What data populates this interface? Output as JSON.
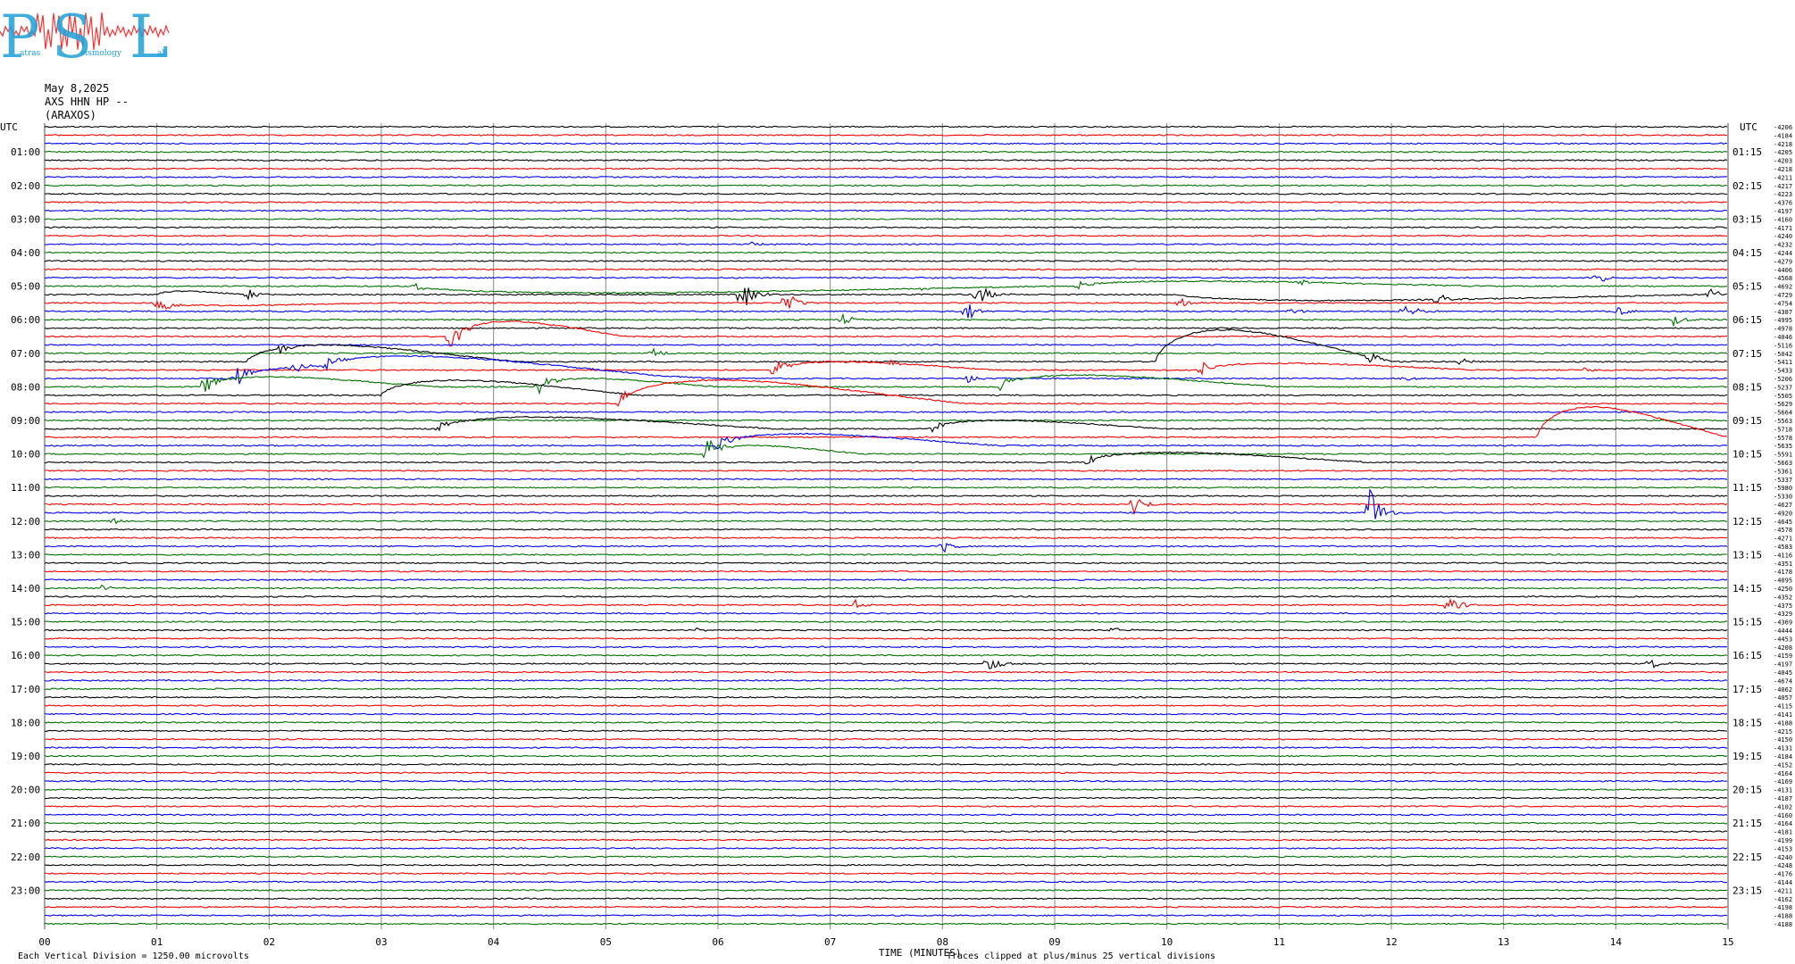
{
  "header": {
    "logo_text": "PSL",
    "logo_subtext": [
      "atras",
      "eismology",
      "ab"
    ],
    "date": "May 8,2025",
    "station": "AXS HHN HP --",
    "site": "(ARAXOS)"
  },
  "colors": {
    "trace_cycle": [
      "#000000",
      "#ff0000",
      "#0000ff",
      "#007000"
    ],
    "grid": "#888888",
    "logo": "#1fa0d8",
    "logo_trace": "#ff3030"
  },
  "chart_data": {
    "type": "seismogram",
    "title": "",
    "xlabel": "TIME (MINUTES)",
    "x_ticks": [
      "00",
      "01",
      "02",
      "03",
      "04",
      "05",
      "06",
      "07",
      "08",
      "09",
      "10",
      "11",
      "12",
      "13",
      "14",
      "15"
    ],
    "xlim": [
      0,
      15
    ],
    "left_axis_label": "UTC",
    "right_axis_label": "UTC",
    "left_hour_labels": [
      "01:00",
      "02:00",
      "03:00",
      "04:00",
      "05:00",
      "06:00",
      "07:00",
      "08:00",
      "09:00",
      "10:00",
      "11:00",
      "12:00",
      "13:00",
      "14:00",
      "15:00",
      "16:00",
      "17:00",
      "18:00",
      "19:00",
      "20:00",
      "21:00",
      "22:00",
      "23:00"
    ],
    "right_hour_labels": [
      "01:15",
      "02:15",
      "03:15",
      "04:15",
      "05:15",
      "06:15",
      "07:15",
      "08:15",
      "09:15",
      "10:15",
      "11:15",
      "12:15",
      "13:15",
      "14:15",
      "15:15",
      "16:15",
      "17:15",
      "18:15",
      "19:15",
      "20:15",
      "21:15",
      "22:15",
      "23:15"
    ],
    "trace_count": 96,
    "row_minutes": 15,
    "right_offsets": [
      -4206,
      -4184,
      -4218,
      -4205,
      -4203,
      -4218,
      -4211,
      -4217,
      -4223,
      -4376,
      -4197,
      -4160,
      -4171,
      -4240,
      -4232,
      -4244,
      -4279,
      -4406,
      -4568,
      -4692,
      -4729,
      -4754,
      -4387,
      -4995,
      -4978,
      -4046,
      -5116,
      -5042,
      -5411,
      -5433,
      -5206,
      -5237,
      -5505,
      -5629,
      -5664,
      -5563,
      -5718,
      -5578,
      -5635,
      -5591,
      -5663,
      -5361,
      -5337,
      -5980,
      -5330,
      -4627,
      -4920,
      -4645,
      -4578,
      -4271,
      -4583,
      -4116,
      -4351,
      -4178,
      -4095,
      -4250,
      -4352,
      -4375,
      -4329,
      -4369,
      -4444,
      -4453,
      -4208,
      -4159,
      -4197,
      -4045,
      -4674,
      -4062,
      -4057,
      -4115,
      -4141,
      -4188,
      -4215,
      -4150,
      -4131,
      -4184,
      -4152,
      -4164,
      -4169,
      -4131,
      -4187,
      -4102,
      -4160,
      -4164,
      -4181,
      -4199,
      -4153,
      -4240,
      -4248,
      -4176,
      -4144,
      -4211,
      -4162,
      -4198,
      -4188,
      -4188
    ],
    "events": [
      {
        "row": 21,
        "minute": 1.0,
        "amp": 22
      },
      {
        "row": 20,
        "minute": 1.8,
        "amp": 7
      },
      {
        "row": 19,
        "minute": 3.3,
        "amp": 4
      },
      {
        "row": 18,
        "minute": 5.4,
        "amp": 2
      },
      {
        "row": 14,
        "minute": 6.3,
        "amp": 3
      },
      {
        "row": 20,
        "minute": 6.2,
        "amp": 26
      },
      {
        "row": 21,
        "minute": 6.6,
        "amp": 16
      },
      {
        "row": 19,
        "minute": 7.8,
        "amp": 3
      },
      {
        "row": 20,
        "minute": 8.3,
        "amp": 18
      },
      {
        "row": 22,
        "minute": 8.2,
        "amp": 15
      },
      {
        "row": 19,
        "minute": 9.2,
        "amp": 6
      },
      {
        "row": 21,
        "minute": 10.1,
        "amp": 7
      },
      {
        "row": 19,
        "minute": 11.2,
        "amp": 4
      },
      {
        "row": 20,
        "minute": 12.4,
        "amp": 10
      },
      {
        "row": 18,
        "minute": 13.8,
        "amp": 10
      },
      {
        "row": 20,
        "minute": 14.8,
        "amp": 12
      },
      {
        "row": 22,
        "minute": 11.1,
        "amp": 4
      },
      {
        "row": 22,
        "minute": 12.1,
        "amp": 14
      },
      {
        "row": 22,
        "minute": 14.0,
        "amp": 7
      },
      {
        "row": 23,
        "minute": 14.5,
        "amp": 9
      },
      {
        "row": 23,
        "minute": 7.1,
        "amp": 7
      },
      {
        "row": 25,
        "minute": 3.6,
        "amp": 22
      },
      {
        "row": 27,
        "minute": 5.4,
        "amp": 8
      },
      {
        "row": 29,
        "minute": 6.5,
        "amp": 12
      },
      {
        "row": 29,
        "minute": 7.5,
        "amp": 6
      },
      {
        "row": 28,
        "minute": 2.1,
        "amp": 8
      },
      {
        "row": 30,
        "minute": 1.7,
        "amp": 18
      },
      {
        "row": 31,
        "minute": 1.4,
        "amp": 16
      },
      {
        "row": 30,
        "minute": 2.2,
        "amp": 9
      },
      {
        "row": 30,
        "minute": 2.5,
        "amp": 9
      },
      {
        "row": 31,
        "minute": 4.4,
        "amp": 12
      },
      {
        "row": 29,
        "minute": 10.3,
        "amp": 10
      },
      {
        "row": 28,
        "minute": 11.8,
        "amp": 10
      },
      {
        "row": 28,
        "minute": 12.6,
        "amp": 5
      },
      {
        "row": 29,
        "minute": 13.7,
        "amp": 4
      },
      {
        "row": 30,
        "minute": 12.1,
        "amp": 4
      },
      {
        "row": 30,
        "minute": 8.2,
        "amp": 8
      },
      {
        "row": 31,
        "minute": 8.5,
        "amp": 10
      },
      {
        "row": 33,
        "minute": 5.1,
        "amp": 10
      },
      {
        "row": 36,
        "minute": 3.5,
        "amp": 6
      },
      {
        "row": 36,
        "minute": 7.9,
        "amp": 7
      },
      {
        "row": 39,
        "minute": 5.9,
        "amp": 22
      },
      {
        "row": 38,
        "minute": 6.0,
        "amp": 12
      },
      {
        "row": 40,
        "minute": 9.3,
        "amp": 9
      },
      {
        "row": 46,
        "minute": 11.8,
        "amp": 34
      },
      {
        "row": 45,
        "minute": 9.7,
        "amp": 14
      },
      {
        "row": 47,
        "minute": 0.6,
        "amp": 5
      },
      {
        "row": 50,
        "minute": 8.0,
        "amp": 10
      },
      {
        "row": 55,
        "minute": 0.5,
        "amp": 4
      },
      {
        "row": 57,
        "minute": 7.2,
        "amp": 8
      },
      {
        "row": 57,
        "minute": 12.5,
        "amp": 16
      },
      {
        "row": 60,
        "minute": 9.5,
        "amp": 6
      },
      {
        "row": 60,
        "minute": 5.8,
        "amp": 2
      },
      {
        "row": 64,
        "minute": 8.4,
        "amp": 14
      },
      {
        "row": 64,
        "minute": 14.3,
        "amp": 7
      }
    ],
    "waves": [
      {
        "row": 19,
        "start": 3.3,
        "end": 9.0,
        "amp": -8
      },
      {
        "row": 19,
        "start": 9.2,
        "end": 12.8,
        "amp": 6
      },
      {
        "row": 20,
        "start": 10.1,
        "end": 14.8,
        "amp": -7
      },
      {
        "row": 20,
        "start": 1.0,
        "end": 1.8,
        "amp": 4
      },
      {
        "row": 21,
        "start": 1.0,
        "end": 3.0,
        "amp": -3
      },
      {
        "row": 25,
        "start": 3.7,
        "end": 5.2,
        "amp": 18
      },
      {
        "row": 28,
        "start": 9.9,
        "end": 12.0,
        "amp": 38
      },
      {
        "row": 28,
        "start": 1.8,
        "end": 4.2,
        "amp": 20
      },
      {
        "row": 29,
        "start": 6.5,
        "end": 8.5,
        "amp": 10
      },
      {
        "row": 29,
        "start": 10.3,
        "end": 12.8,
        "amp": 8
      },
      {
        "row": 30,
        "start": 1.7,
        "end": 5.5,
        "amp": 16
      },
      {
        "row": 30,
        "start": 2.5,
        "end": 6.0,
        "amp": 12
      },
      {
        "row": 31,
        "start": 1.4,
        "end": 3.5,
        "amp": 12
      },
      {
        "row": 31,
        "start": 4.4,
        "end": 6.0,
        "amp": 10
      },
      {
        "row": 32,
        "start": 3.0,
        "end": 5.3,
        "amp": 18
      },
      {
        "row": 33,
        "start": 5.1,
        "end": 8.2,
        "amp": 28
      },
      {
        "row": 31,
        "start": 8.5,
        "end": 11.0,
        "amp": 14
      },
      {
        "row": 36,
        "start": 3.5,
        "end": 6.5,
        "amp": 14
      },
      {
        "row": 36,
        "start": 7.9,
        "end": 10.0,
        "amp": 10
      },
      {
        "row": 38,
        "start": 6.0,
        "end": 8.5,
        "amp": 14
      },
      {
        "row": 39,
        "start": 5.9,
        "end": 7.3,
        "amp": 10
      },
      {
        "row": 40,
        "start": 9.3,
        "end": 11.8,
        "amp": 12
      },
      {
        "row": 37,
        "start": 13.3,
        "end": 15.0,
        "amp": 36
      }
    ],
    "footer_left": "Each Vertical Division = 1250.00 microvolts",
    "footer_right": "Traces clipped at plus/minus 25 vertical divisions"
  }
}
